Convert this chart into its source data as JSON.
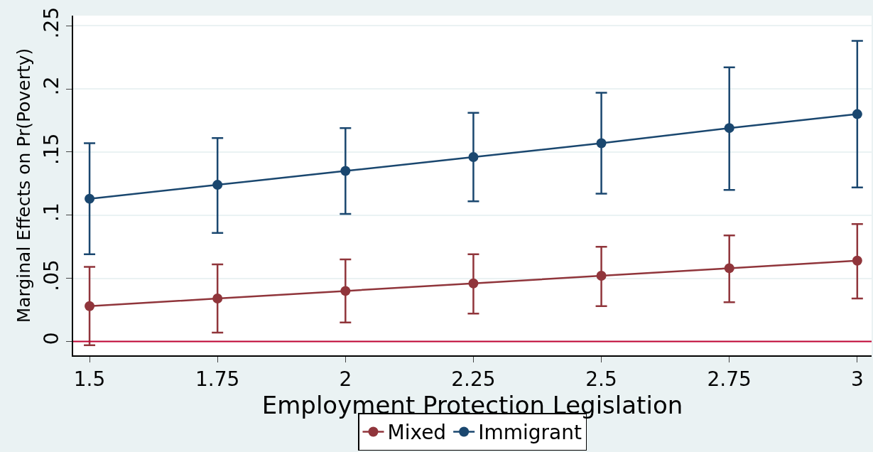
{
  "chart_data": {
    "type": "line",
    "xlabel": "Employment Protection Legislation",
    "ylabel": "Marginal Effects on Pr(Poverty)",
    "x": [
      1.5,
      1.75,
      2,
      2.25,
      2.5,
      2.75,
      3
    ],
    "series": [
      {
        "name": "Mixed",
        "color": "#90353b",
        "values": [
          0.028,
          0.034,
          0.04,
          0.046,
          0.052,
          0.058,
          0.064
        ],
        "errors": [
          [
            -0.003,
            0.059
          ],
          [
            0.007,
            0.061
          ],
          [
            0.015,
            0.065
          ],
          [
            0.022,
            0.069
          ],
          [
            0.028,
            0.075
          ],
          [
            0.031,
            0.084
          ],
          [
            0.034,
            0.093
          ]
        ]
      },
      {
        "name": "Immigrant",
        "color": "#1a476f",
        "values": [
          0.113,
          0.124,
          0.135,
          0.146,
          0.157,
          0.169,
          0.18
        ],
        "errors": [
          [
            0.069,
            0.157
          ],
          [
            0.086,
            0.161
          ],
          [
            0.101,
            0.169
          ],
          [
            0.111,
            0.181
          ],
          [
            0.117,
            0.197
          ],
          [
            0.12,
            0.217
          ],
          [
            0.122,
            0.238
          ]
        ]
      }
    ],
    "xlim": [
      1.468,
      3.028
    ],
    "xticks": [
      1.5,
      1.75,
      2,
      2.25,
      2.5,
      2.75,
      3
    ],
    "ylim": [
      -0.011,
      0.258
    ],
    "yticks": [
      {
        "value": 0,
        "label": "0"
      },
      {
        "value": 0.05,
        "label": ".05"
      },
      {
        "value": 0.1,
        "label": ".1"
      },
      {
        "value": 0.15,
        "label": ".15"
      },
      {
        "value": 0.2,
        "label": ".2"
      },
      {
        "value": 0.25,
        "label": ".25"
      }
    ],
    "ref_lines": [
      {
        "axis": "y",
        "value": 0,
        "color": "#c10534"
      }
    ],
    "grid": "y",
    "legend": "bottom",
    "marker": "circle",
    "line_style": "solid"
  }
}
